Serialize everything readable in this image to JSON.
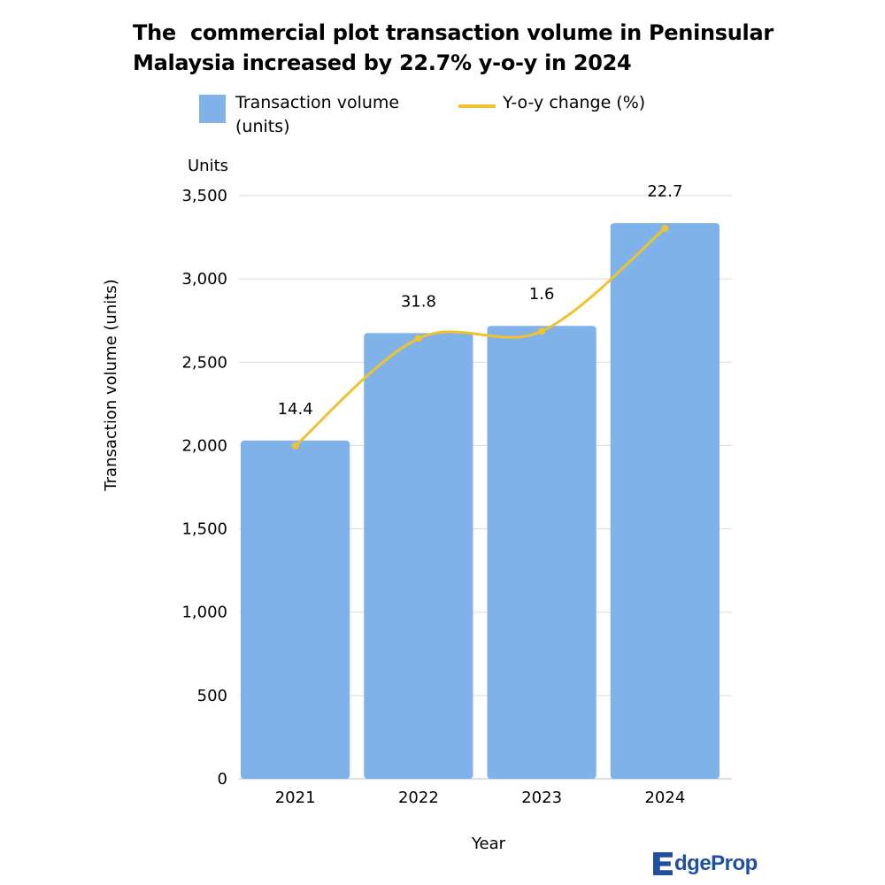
{
  "chart_data": {
    "type": "bar",
    "title": "The  commercial plot transaction volume in Peninsular Malaysia increased by 22.7% y-o-y in 2024",
    "categories": [
      "2021",
      "2022",
      "2023",
      "2024"
    ],
    "series": [
      {
        "name": "Transaction volume (units)",
        "type": "bar",
        "color": "#7fb2e8",
        "values": [
          2030,
          2675,
          2718,
          3335
        ]
      },
      {
        "name": "Y-o-y change (%)",
        "type": "line",
        "color": "#f0c22e",
        "values": [
          14.4,
          31.8,
          1.6,
          22.7
        ],
        "labels": [
          "14.4",
          "31.8",
          "1.6",
          "22.7"
        ]
      }
    ],
    "legend": {
      "bar_label_lines": [
        "Transaction volume",
        "(units)"
      ],
      "line_label": "Y-o-y change (%)",
      "placement": "top"
    },
    "ylabel": "Transaction volume (units)",
    "y_unit_label": "Units",
    "xlabel": "Year",
    "ylim": [
      0,
      3500
    ],
    "yticks": [
      "0",
      "500",
      "1,000",
      "1,500",
      "2,000",
      "2,500",
      "3,000",
      "3,500"
    ],
    "grid": true
  },
  "logo": {
    "text": "dgeProp",
    "brand": "EdgeProp",
    "icon": "edgeprop-e-logo",
    "color": "#1f4fa3"
  }
}
